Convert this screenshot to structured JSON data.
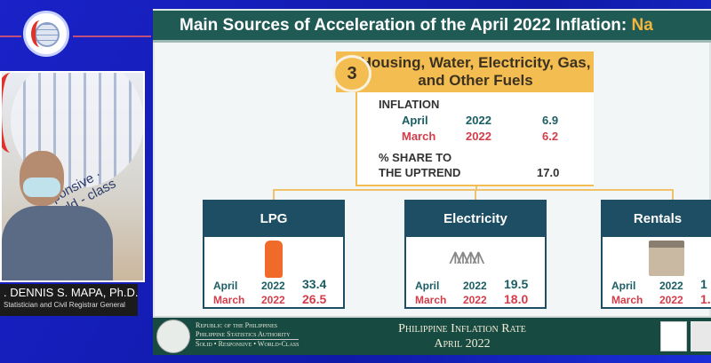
{
  "speaker": {
    "name": ". DENNIS S. MAPA, Ph.D.",
    "role": "Statistician and Civil Registrar General",
    "backdrop_slogan": "esponsive · World - class"
  },
  "slide": {
    "title": "Main Sources of Acceleration of the April 2022 Inflation: ",
    "title_highlight": "Na",
    "group": {
      "number": "3",
      "name": "Housing, Water, Electricity, Gas, and Other Fuels",
      "inflation_label": "INFLATION",
      "rows": [
        {
          "month": "April",
          "year": "2022",
          "value": "6.9"
        },
        {
          "month": "March",
          "year": "2022",
          "value": "6.2"
        }
      ],
      "share_label_1": "% SHARE TO",
      "share_label_2": "THE UPTREND",
      "share_value": "17.0"
    },
    "items": [
      {
        "name": "LPG",
        "icon": "gas-cylinder-icon",
        "april": {
          "month": "April",
          "year": "2022",
          "value": "33.4"
        },
        "march": {
          "month": "March",
          "year": "2022",
          "value": "26.5"
        }
      },
      {
        "name": "Electricity",
        "icon": "power-tower-icon",
        "april": {
          "month": "April",
          "year": "2022",
          "value": "19.5"
        },
        "march": {
          "month": "March",
          "year": "2022",
          "value": "18.0"
        }
      },
      {
        "name": "Rentals",
        "icon": "house-icon",
        "april": {
          "month": "April",
          "year": "2022",
          "value": "1"
        },
        "march": {
          "month": "March",
          "year": "2022",
          "value": "1."
        }
      }
    ],
    "footer": {
      "org1": "Republic of the Philippines",
      "org2": "Philippine Statistics Authority",
      "org3": "Solid • Responsive • World-Class",
      "title1": "Philippine Inflation Rate",
      "title2": "April 2022"
    }
  },
  "colors": {
    "teal": "#1f5a55",
    "orange": "#f4bd52",
    "red": "#d43d4a",
    "blue_bg": "#1a22c8"
  }
}
